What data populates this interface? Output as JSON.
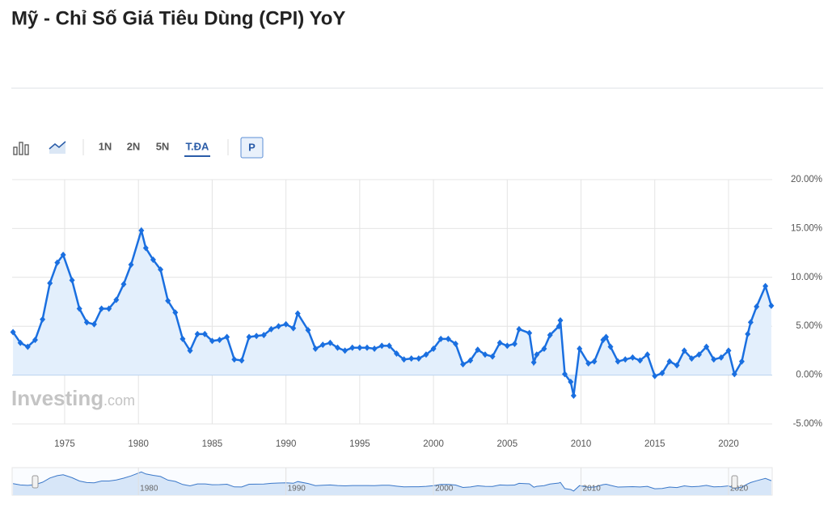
{
  "chart_data": {
    "type": "line",
    "title": "Mỹ - Chỉ Số Giá Tiêu Dùng (CPI) YoY",
    "x": [
      1971.5,
      1972.0,
      1972.5,
      1973.0,
      1973.5,
      1974.0,
      1974.5,
      1974.9,
      1975.5,
      1976.0,
      1976.5,
      1977.0,
      1977.5,
      1978.0,
      1978.5,
      1979.0,
      1979.5,
      1980.2,
      1980.5,
      1981.0,
      1981.5,
      1982.0,
      1982.5,
      1983.0,
      1983.5,
      1984.0,
      1984.5,
      1985.0,
      1985.5,
      1986.0,
      1986.5,
      1987.0,
      1987.5,
      1988.0,
      1988.5,
      1989.0,
      1989.5,
      1990.0,
      1990.5,
      1990.8,
      1991.5,
      1992.0,
      1992.5,
      1993.0,
      1993.5,
      1994.0,
      1994.5,
      1995.0,
      1995.5,
      1996.0,
      1996.5,
      1997.0,
      1997.5,
      1998.0,
      1998.5,
      1999.0,
      1999.5,
      2000.0,
      2000.5,
      2001.0,
      2001.5,
      2002.0,
      2002.5,
      2003.0,
      2003.5,
      2004.0,
      2004.5,
      2005.0,
      2005.5,
      2005.8,
      2006.5,
      2006.8,
      2007.0,
      2007.5,
      2007.9,
      2008.5,
      2008.6,
      2008.9,
      2009.3,
      2009.5,
      2009.9,
      2010.5,
      2010.9,
      2011.5,
      2011.7,
      2012.0,
      2012.5,
      2013.0,
      2013.5,
      2014.0,
      2014.5,
      2015.0,
      2015.5,
      2016.0,
      2016.5,
      2017.0,
      2017.5,
      2018.0,
      2018.5,
      2019.0,
      2019.5,
      2020.0,
      2020.4,
      2020.9,
      2021.3,
      2021.5,
      2021.9,
      2022.5,
      2022.9
    ],
    "values": [
      4.4,
      3.3,
      2.9,
      3.6,
      5.7,
      9.4,
      11.5,
      12.3,
      9.7,
      6.8,
      5.4,
      5.2,
      6.8,
      6.8,
      7.7,
      9.3,
      11.3,
      14.8,
      13.0,
      11.8,
      10.8,
      7.6,
      6.4,
      3.7,
      2.5,
      4.2,
      4.2,
      3.5,
      3.6,
      3.9,
      1.6,
      1.5,
      3.9,
      4.0,
      4.1,
      4.7,
      5.0,
      5.2,
      4.8,
      6.3,
      4.6,
      2.7,
      3.1,
      3.3,
      2.8,
      2.5,
      2.8,
      2.8,
      2.8,
      2.7,
      3.0,
      3.0,
      2.2,
      1.6,
      1.7,
      1.7,
      2.1,
      2.7,
      3.7,
      3.7,
      3.2,
      1.1,
      1.5,
      2.6,
      2.1,
      1.9,
      3.3,
      3.0,
      3.2,
      4.7,
      4.3,
      1.3,
      2.1,
      2.7,
      4.1,
      5.0,
      5.6,
      0.1,
      -0.7,
      -2.1,
      2.7,
      1.2,
      1.4,
      3.6,
      3.9,
      2.9,
      1.4,
      1.6,
      1.8,
      1.5,
      2.1,
      -0.1,
      0.2,
      1.4,
      1.0,
      2.5,
      1.7,
      2.1,
      2.9,
      1.6,
      1.8,
      2.5,
      0.1,
      1.4,
      4.2,
      5.4,
      7.0,
      9.1,
      7.1
    ],
    "color": "#1a6fe0",
    "fill": "#e3effc",
    "xlim": [
      1971.44,
      2022.96
    ],
    "xticks": [
      1975,
      1980,
      1985,
      1990,
      1995,
      2000,
      2005,
      2010,
      2015,
      2020
    ],
    "ylim": [
      -5,
      20
    ],
    "yticks": [
      {
        "value": -5,
        "label": "-5.00%"
      },
      {
        "value": 0,
        "label": "0.00%"
      },
      {
        "value": 5,
        "label": "5.00%"
      },
      {
        "value": 10,
        "label": "10.00%"
      },
      {
        "value": 15,
        "label": "15.00%"
      },
      {
        "value": 20,
        "label": "20.00%"
      }
    ],
    "grid": true,
    "navigator": {
      "xticks": [
        1980,
        1990,
        2000,
        2010,
        2020
      ]
    }
  },
  "toolbar": {
    "ranges": [
      "1N",
      "2N",
      "5N",
      "T.ĐA"
    ],
    "active": 3,
    "button": "P"
  },
  "watermark": [
    "Investing",
    ".com"
  ]
}
